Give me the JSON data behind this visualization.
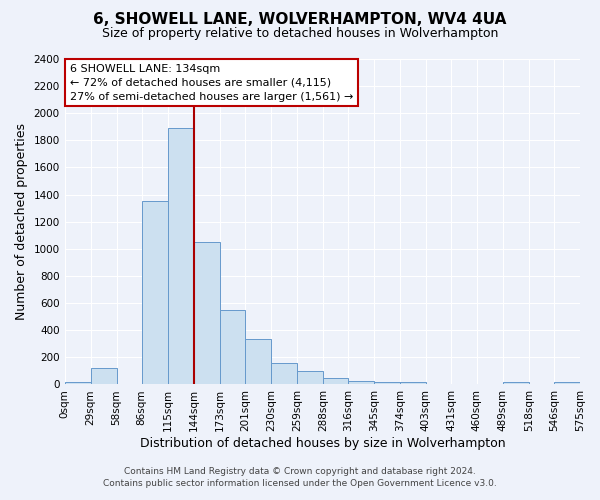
{
  "title": "6, SHOWELL LANE, WOLVERHAMPTON, WV4 4UA",
  "subtitle": "Size of property relative to detached houses in Wolverhampton",
  "xlabel": "Distribution of detached houses by size in Wolverhampton",
  "ylabel": "Number of detached properties",
  "bin_edges": [
    0,
    29,
    58,
    86,
    115,
    144,
    173,
    201,
    230,
    259,
    288,
    316,
    345,
    374,
    403,
    431,
    460,
    489,
    518,
    546,
    575
  ],
  "bin_heights": [
    15,
    120,
    0,
    1350,
    1890,
    1050,
    550,
    335,
    160,
    100,
    50,
    25,
    20,
    20,
    0,
    0,
    0,
    20,
    0,
    20
  ],
  "bar_facecolor": "#cce0f0",
  "bar_edgecolor": "#6699cc",
  "vline_x": 144,
  "vline_color": "#aa0000",
  "annotation_title": "6 SHOWELL LANE: 134sqm",
  "annotation_line1": "← 72% of detached houses are smaller (4,115)",
  "annotation_line2": "27% of semi-detached houses are larger (1,561) →",
  "annotation_box_edgecolor": "#bb0000",
  "annotation_box_facecolor": "#ffffff",
  "ylim": [
    0,
    2400
  ],
  "yticks": [
    0,
    200,
    400,
    600,
    800,
    1000,
    1200,
    1400,
    1600,
    1800,
    2000,
    2200,
    2400
  ],
  "xtick_labels": [
    "0sqm",
    "29sqm",
    "58sqm",
    "86sqm",
    "115sqm",
    "144sqm",
    "173sqm",
    "201sqm",
    "230sqm",
    "259sqm",
    "288sqm",
    "316sqm",
    "345sqm",
    "374sqm",
    "403sqm",
    "431sqm",
    "460sqm",
    "489sqm",
    "518sqm",
    "546sqm",
    "575sqm"
  ],
  "footnote1": "Contains HM Land Registry data © Crown copyright and database right 2024.",
  "footnote2": "Contains public sector information licensed under the Open Government Licence v3.0.",
  "bg_color": "#eef2fa",
  "grid_color": "#ffffff",
  "title_fontsize": 11,
  "subtitle_fontsize": 9,
  "axis_label_fontsize": 9,
  "tick_fontsize": 7.5,
  "footnote_fontsize": 6.5
}
